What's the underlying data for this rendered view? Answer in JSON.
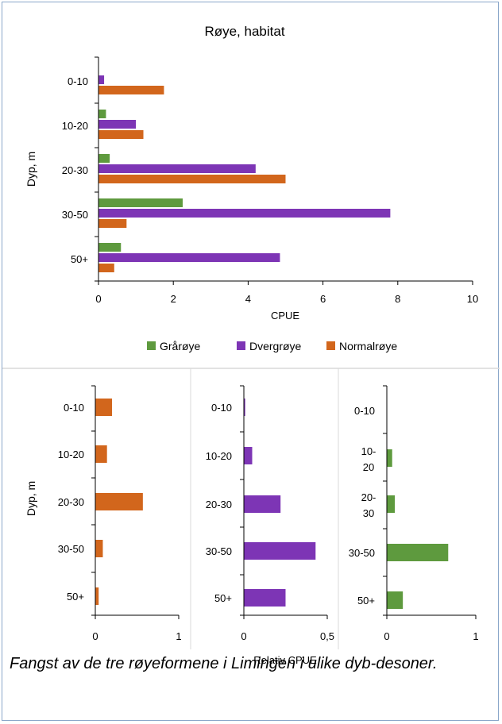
{
  "caption": "Fangst av de tre røyeformene i Limingen i ulike dyb-desoner.",
  "colors": {
    "graroye": "#5e9a3e",
    "dvergroye": "#7d35b5",
    "normalroye": "#d2661c",
    "axis": "#000000",
    "panel_border": "#d9d9d9"
  },
  "chart_data": [
    {
      "type": "bar",
      "orientation": "horizontal",
      "title": "Røye, habitat",
      "xlabel": "CPUE",
      "ylabel": "Dyp, m",
      "categories": [
        "0-10",
        "10-20",
        "20-30",
        "30-50",
        "50+"
      ],
      "xlim": [
        0,
        10
      ],
      "xticks": [
        "0",
        "2",
        "4",
        "6",
        "8",
        "10"
      ],
      "legend_position": "bottom",
      "grid": false,
      "series": [
        {
          "name": "Grårøye",
          "color": "#5e9a3e",
          "values": [
            0,
            0.2,
            0.3,
            2.25,
            0.6
          ]
        },
        {
          "name": "Dvergrøye",
          "color": "#7d35b5",
          "values": [
            0.15,
            1.0,
            4.2,
            7.8,
            4.85
          ]
        },
        {
          "name": "Normalrøye",
          "color": "#d2661c",
          "values": [
            1.75,
            1.2,
            5.0,
            0.75,
            0.42
          ]
        }
      ]
    },
    {
      "type": "bar",
      "orientation": "horizontal",
      "title": "",
      "xlabel": "",
      "ylabel": "Dyp, m",
      "categories": [
        "0-10",
        "10-20",
        "20-30",
        "30-50",
        "50+"
      ],
      "xlim": [
        0,
        1
      ],
      "xticks": [
        "0",
        "1"
      ],
      "series": [
        {
          "color": "#d2661c",
          "values": [
            0.2,
            0.14,
            0.57,
            0.09,
            0.04
          ]
        }
      ]
    },
    {
      "type": "bar",
      "orientation": "horizontal",
      "title": "",
      "xlabel": "Relativ CPUE",
      "ylabel": "",
      "categories": [
        "0-10",
        "10-20",
        "20-30",
        "30-50",
        "50+"
      ],
      "xlim": [
        0,
        0.5
      ],
      "xticks": [
        "0",
        "0,5"
      ],
      "series": [
        {
          "color": "#7d35b5",
          "values": [
            0.008,
            0.05,
            0.22,
            0.43,
            0.25
          ]
        }
      ]
    },
    {
      "type": "bar",
      "orientation": "horizontal",
      "title": "",
      "xlabel": "",
      "ylabel": "",
      "categories": [
        "0-10",
        "10-20",
        "20-30",
        "30-50",
        "50+"
      ],
      "category_lines": [
        [
          "0-10"
        ],
        [
          "10-",
          "20"
        ],
        [
          "20-",
          "30"
        ],
        [
          "30-50"
        ],
        [
          "50+"
        ]
      ],
      "xlim": [
        0,
        1
      ],
      "xticks": [
        "0",
        "1"
      ],
      "series": [
        {
          "color": "#5e9a3e",
          "values": [
            0,
            0.06,
            0.09,
            0.69,
            0.18
          ]
        }
      ]
    }
  ]
}
